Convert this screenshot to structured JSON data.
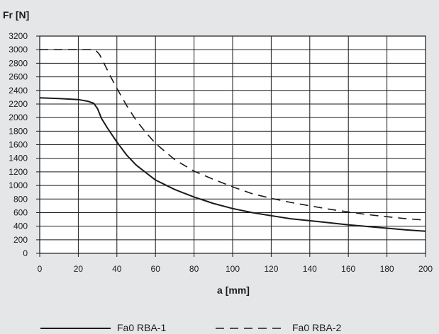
{
  "chart_data": {
    "type": "line",
    "ylabel": "Fr [N]",
    "xlabel": "a [mm]",
    "xlim": [
      0,
      200
    ],
    "ylim": [
      0,
      3200
    ],
    "xticks": [
      0,
      20,
      40,
      60,
      80,
      100,
      120,
      140,
      160,
      180,
      200
    ],
    "yticks": [
      0,
      200,
      400,
      600,
      800,
      1000,
      1200,
      1400,
      1600,
      1800,
      2000,
      2200,
      2400,
      2600,
      2800,
      3000,
      3200
    ],
    "grid": true,
    "legend_position": "bottom",
    "series": [
      {
        "name": "Fa0 RBA-1",
        "style": "solid",
        "color": "#1a1a1a",
        "x": [
          0,
          10,
          20,
          25,
          28,
          30,
          32,
          35,
          40,
          45,
          50,
          60,
          70,
          80,
          90,
          100,
          110,
          120,
          130,
          140,
          150,
          160,
          170,
          180,
          190,
          200
        ],
        "y": [
          2290,
          2280,
          2265,
          2240,
          2210,
          2130,
          1990,
          1850,
          1640,
          1450,
          1300,
          1080,
          940,
          830,
          735,
          660,
          600,
          555,
          510,
          480,
          450,
          420,
          395,
          370,
          345,
          325
        ]
      },
      {
        "name": "Fa0 RBA-2",
        "style": "dashed",
        "color": "#1a1a1a",
        "x": [
          0,
          10,
          20,
          27,
          29,
          31,
          34,
          37,
          40,
          45,
          50,
          55,
          60,
          70,
          80,
          90,
          100,
          110,
          120,
          130,
          140,
          150,
          160,
          170,
          180,
          190,
          200
        ],
        "y": [
          3000,
          3000,
          3000,
          3000,
          2990,
          2930,
          2760,
          2590,
          2430,
          2180,
          1960,
          1780,
          1620,
          1380,
          1210,
          1090,
          980,
          880,
          810,
          750,
          700,
          650,
          610,
          570,
          540,
          510,
          490
        ]
      }
    ]
  },
  "colors": {
    "background": "#e5e6e8",
    "plot_area": "#ffffff",
    "grid": "#1a1a1a",
    "line": "#1a1a1a"
  }
}
